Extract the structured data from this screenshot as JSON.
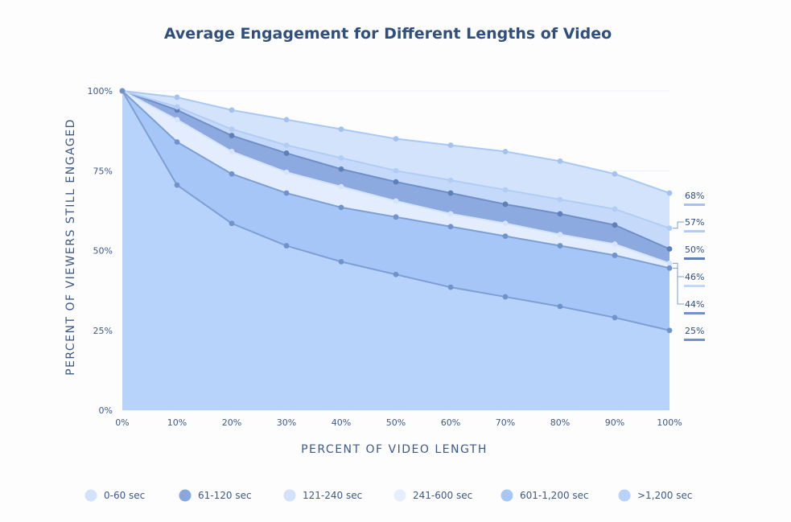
{
  "chart_data": {
    "type": "area",
    "title": "Average Engagement for Different Lengths of Video",
    "xlabel": "PERCENT OF VIDEO LENGTH",
    "ylabel": "PERCENT OF VIEWERS STILL ENGAGED",
    "x": [
      0,
      10,
      20,
      30,
      40,
      50,
      60,
      70,
      80,
      90,
      100
    ],
    "x_tick_labels": [
      "0%",
      "10%",
      "20%",
      "30%",
      "40%",
      "50%",
      "60%",
      "70%",
      "80%",
      "90%",
      "100%"
    ],
    "ylim": [
      0,
      100
    ],
    "y_ticks": [
      0,
      25,
      50,
      75,
      100
    ],
    "y_tick_labels": [
      "0%",
      "25%",
      "50%",
      "75%",
      "100%"
    ],
    "legend_position": "bottom",
    "series": [
      {
        "name": "0-60 sec",
        "values": [
          100,
          98,
          94,
          91,
          88,
          85,
          83,
          81,
          78,
          74,
          68
        ],
        "end_label": "68%",
        "fill": "#d3e3fb",
        "line": "#a9c8f3",
        "marker": "#a3c2f0",
        "swatch": "#d2e2fb"
      },
      {
        "name": "61-120 sec",
        "values": [
          100,
          94,
          86,
          80.5,
          75.5,
          71.5,
          68,
          64.5,
          61.5,
          58,
          50.5
        ],
        "end_label": "50%",
        "fill": "#8daae0",
        "line": "#6f8fc9",
        "marker": "#5f7fb8",
        "swatch": "#8aa7dd"
      },
      {
        "name": "121-240 sec",
        "values": [
          100,
          95,
          88,
          83,
          79,
          75,
          72,
          69,
          66,
          63,
          57
        ],
        "end_label": "57%",
        "fill": "#c5dafa",
        "line": "#b2cdf5",
        "marker": "#b2cdf5",
        "swatch": "#d2e2fb"
      },
      {
        "name": "241-600 sec",
        "values": [
          100,
          91,
          81,
          74.5,
          70,
          65.5,
          61.5,
          58.5,
          55,
          52,
          46
        ],
        "end_label": "46%",
        "fill": "#e3edfd",
        "line": "#d3e3fb",
        "marker": "#d6e4fb",
        "swatch": "#e5eefc"
      },
      {
        "name": "601-1,200 sec",
        "values": [
          100,
          84,
          74,
          68,
          63.5,
          60.5,
          57.5,
          54.5,
          51.5,
          48.5,
          44.5
        ],
        "end_label": "44%",
        "fill": "#a6c6f7",
        "line": "#7d9fd4",
        "marker": "#7193cb",
        "swatch": "#a8c6f6"
      },
      {
        "name": ">1,200 sec",
        "values": [
          100,
          70.5,
          58.5,
          51.5,
          46.5,
          42.5,
          38.5,
          35.5,
          32.5,
          29,
          25
        ],
        "end_label": "25%",
        "fill": "#b8d3fb",
        "line": "#7d9fd4",
        "marker": "#7193cb",
        "swatch": "#b8d3fb"
      }
    ]
  }
}
